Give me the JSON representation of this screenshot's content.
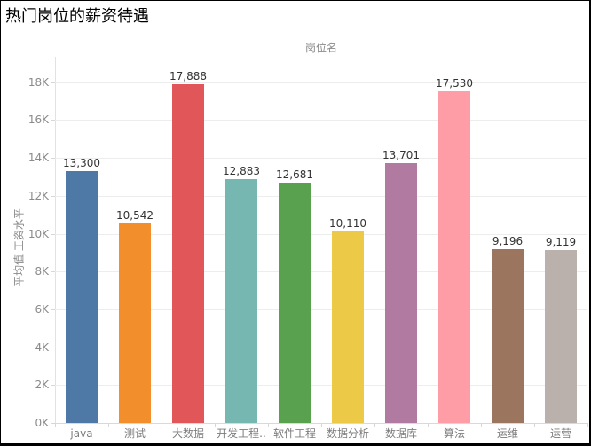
{
  "chart_data": {
    "type": "bar",
    "title": "热门岗位的薪资待遇",
    "xlabel": "岗位名",
    "ylabel": "平均值 工资水平",
    "categories": [
      "java",
      "测试",
      "大数据",
      "开发工程..",
      "软件工程",
      "数据分析",
      "数据库",
      "算法",
      "运维",
      "运营"
    ],
    "values": [
      13300,
      10542,
      17888,
      12883,
      12681,
      10110,
      13701,
      17530,
      9196,
      9119
    ],
    "data_labels": [
      "13,300",
      "10,542",
      "17,888",
      "12,883",
      "12,681",
      "10,110",
      "13,701",
      "17,530",
      "9,196",
      "9,119"
    ],
    "bar_colors": [
      "#4e79a7",
      "#f28e2b",
      "#e15759",
      "#76b7b2",
      "#59a14f",
      "#edc948",
      "#b07aa1",
      "#ff9da7",
      "#9c755f",
      "#bab0ac"
    ],
    "yticks": {
      "labels": [
        "0K",
        "2K",
        "4K",
        "6K",
        "8K",
        "10K",
        "12K",
        "14K",
        "16K",
        "18K"
      ],
      "values": [
        0,
        2000,
        4000,
        6000,
        8000,
        10000,
        12000,
        14000,
        16000,
        18000
      ]
    },
    "ylim": [
      0,
      19400
    ],
    "grid": "horizontal",
    "legend": "none",
    "colors": {
      "grid": "#ededed",
      "axis": "#e2e2e2",
      "tick_label": "#8a8a8a",
      "value_label": "#333333",
      "title": "#000000"
    }
  }
}
